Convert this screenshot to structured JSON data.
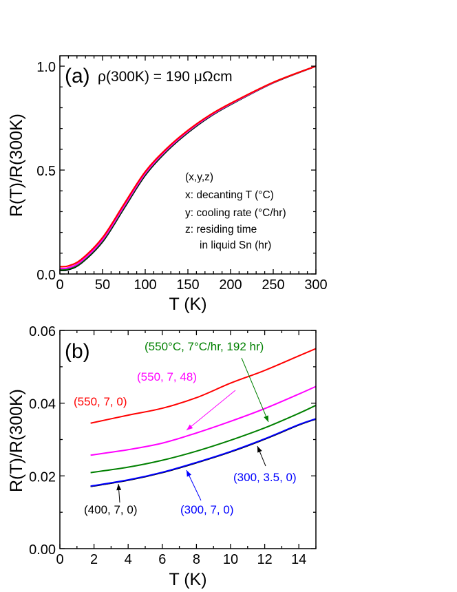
{
  "chart_data": [
    {
      "type": "line",
      "panel_label": "(a)",
      "annotation": "ρ(300K) = 190 μΩcm",
      "xlabel": "T (K)",
      "ylabel": "R(T)/R(300K)",
      "xlim": [
        0,
        300
      ],
      "ylim": [
        0,
        1.05
      ],
      "xticks": [
        "0",
        "50",
        "100",
        "150",
        "200",
        "250",
        "300"
      ],
      "yticks": [
        "0.0",
        "0.5",
        "1.0"
      ],
      "grid": false,
      "legend_note": [
        "(x,y,z)",
        "x: decanting T (°C)",
        "y: cooling rate (°C/hr)",
        "z: residing time",
        "in liquid Sn (hr)"
      ],
      "x": [
        0,
        10,
        25,
        50,
        75,
        100,
        125,
        150,
        175,
        200,
        250,
        300
      ],
      "series": [
        {
          "color": "#0000ff",
          "values": [
            0.017,
            0.021,
            0.052,
            0.155,
            0.315,
            0.475,
            0.59,
            0.68,
            0.755,
            0.815,
            0.92,
            1.0
          ]
        },
        {
          "color": "#000000",
          "values": [
            0.017,
            0.021,
            0.052,
            0.155,
            0.315,
            0.475,
            0.59,
            0.68,
            0.755,
            0.815,
            0.92,
            1.0
          ]
        },
        {
          "color": "#008000",
          "values": [
            0.021,
            0.025,
            0.056,
            0.16,
            0.32,
            0.48,
            0.594,
            0.683,
            0.757,
            0.816,
            0.92,
            1.0
          ]
        },
        {
          "color": "#ff00ff",
          "values": [
            0.026,
            0.03,
            0.061,
            0.165,
            0.325,
            0.484,
            0.597,
            0.686,
            0.759,
            0.818,
            0.921,
            1.0
          ]
        },
        {
          "color": "#ff0000",
          "values": [
            0.035,
            0.039,
            0.07,
            0.175,
            0.335,
            0.492,
            0.603,
            0.691,
            0.763,
            0.821,
            0.922,
            1.0
          ]
        }
      ]
    },
    {
      "type": "line",
      "panel_label": "(b)",
      "xlabel": "T (K)",
      "ylabel": "R(T)/R(300K)",
      "xlim": [
        0,
        15
      ],
      "ylim": [
        0,
        0.06
      ],
      "xticks": [
        "0",
        "2",
        "4",
        "6",
        "8",
        "10",
        "12",
        "14"
      ],
      "yticks": [
        "0.00",
        "0.02",
        "0.04",
        "0.06"
      ],
      "grid": false,
      "x": [
        1.8,
        4,
        6,
        8,
        10,
        12,
        14,
        15
      ],
      "series": [
        {
          "name": "(550, 7, 0)",
          "color": "#ff0000",
          "values": [
            0.0345,
            0.0367,
            0.0386,
            0.0415,
            0.0455,
            0.049,
            0.053,
            0.055
          ]
        },
        {
          "name": "(550, 7, 48)",
          "color": "#ff00ff",
          "values": [
            0.0257,
            0.0272,
            0.029,
            0.0318,
            0.035,
            0.0385,
            0.0425,
            0.0446
          ]
        },
        {
          "name": "(550°C, 7°C/hr, 192 hr)",
          "color": "#008000",
          "values": [
            0.0209,
            0.0224,
            0.0243,
            0.0268,
            0.0298,
            0.0332,
            0.0372,
            0.0394
          ]
        },
        {
          "name": "(400, 7, 0)",
          "color": "#000000",
          "values": [
            0.0171,
            0.0188,
            0.0209,
            0.0236,
            0.0266,
            0.0301,
            0.034,
            0.0357
          ]
        },
        {
          "name": "(300, 3.5, 0)",
          "color": "#000000",
          "values": [
            0.0171,
            0.0188,
            0.0209,
            0.0236,
            0.0266,
            0.0301,
            0.034,
            0.0356
          ]
        },
        {
          "name": "(300, 7, 0)",
          "color": "#0000ff",
          "values": [
            0.0172,
            0.0189,
            0.021,
            0.0237,
            0.0267,
            0.0302,
            0.0341,
            0.0357
          ]
        }
      ],
      "label_colors": {
        "red": "#ff0000",
        "magenta": "#ff00ff",
        "green": "#008000",
        "blue": "#0000ff",
        "black": "#000000"
      }
    }
  ]
}
